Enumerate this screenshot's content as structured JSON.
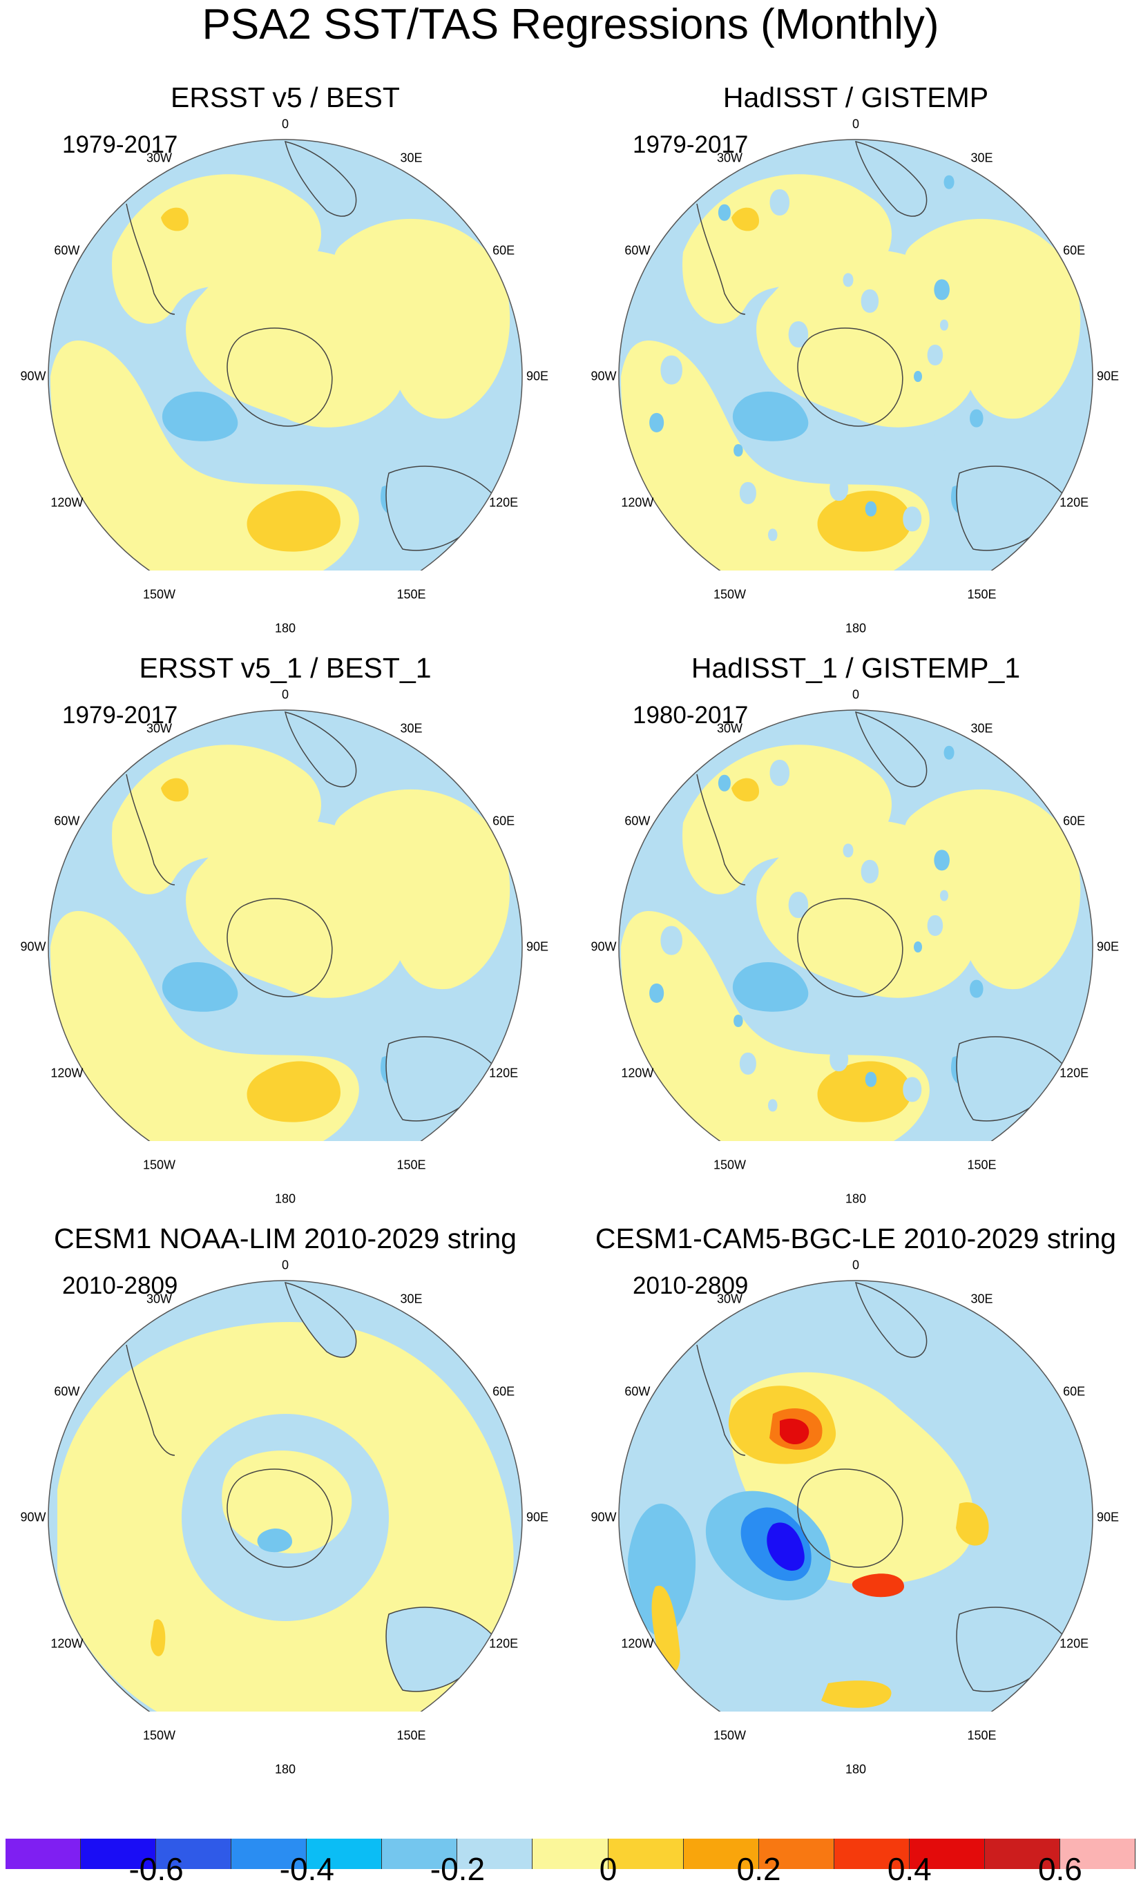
{
  "title": "PSA2 SST/TAS Regressions (Monthly)",
  "longitude_labels": [
    "0",
    "30E",
    "60E",
    "90E",
    "120E",
    "150E",
    "180",
    "150W",
    "120W",
    "90W",
    "60W",
    "30W"
  ],
  "panels": [
    {
      "title": "ERSST v5 / BEST",
      "period": "1979-2017",
      "pattern": "obs_smooth"
    },
    {
      "title": "HadISST / GISTEMP",
      "period": "1979-2017",
      "pattern": "obs_noisy"
    },
    {
      "title": "ERSST v5_1 / BEST_1",
      "period": "1979-2017",
      "pattern": "obs_smooth"
    },
    {
      "title": "HadISST_1 / GISTEMP_1",
      "period": "1980-2017",
      "pattern": "obs_noisy"
    },
    {
      "title": "CESM1 NOAA-LIM 2010-2029 string",
      "period": "2010-2809",
      "pattern": "lim"
    },
    {
      "title": "CESM1-CAM5-BGC-LE 2010-2029 string",
      "period": "2010-2809",
      "pattern": "model"
    }
  ],
  "colorbar": {
    "colors": [
      "#7f1ff2",
      "#1a0df5",
      "#2f5ae8",
      "#2a8df2",
      "#0bbdf5",
      "#74c6ee",
      "#b5def2",
      "#fbf79a",
      "#fbd232",
      "#f9a50c",
      "#f87812",
      "#f53a0c",
      "#e30b0b",
      "#cc1d1d",
      "#fbb3b3"
    ],
    "labels": [
      "-0.6",
      "-0.4",
      "-0.2",
      "0",
      "0.2",
      "0.4",
      "0.6"
    ],
    "label_colors": [
      2,
      4,
      6,
      8,
      10,
      12,
      14
    ]
  },
  "land_color": "#ffffff",
  "base_color": "#b5def2"
}
